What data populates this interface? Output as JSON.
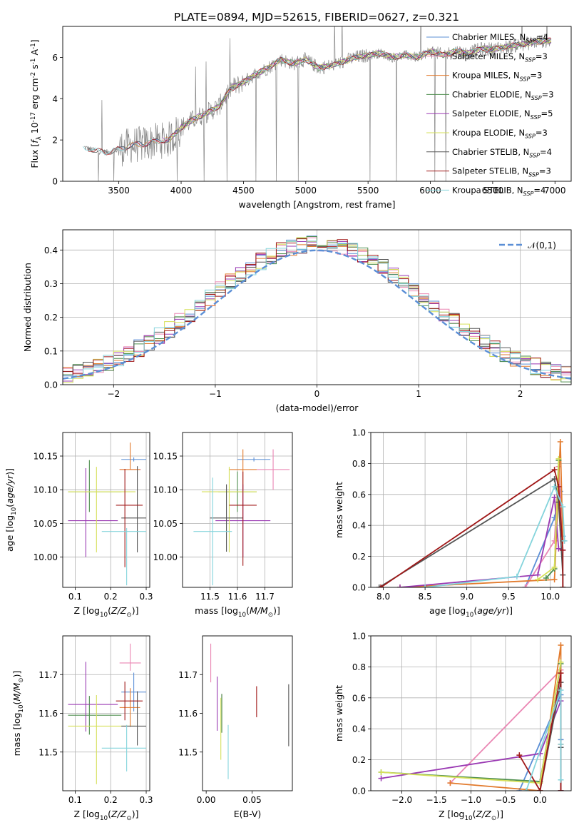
{
  "title": "PLATE=0894, MJD=52615, FIBERID=0627, z=0.321",
  "colors": {
    "chabrier_miles": "#5b8fd6",
    "salpeter_miles": "#ea86b3",
    "kroupa_miles": "#e27a2c",
    "chabrier_elodie": "#4e8e4e",
    "salpeter_elodie": "#9a39b3",
    "kroupa_elodie": "#d6e05a",
    "chabrier_stelib": "#555555",
    "salpeter_stelib": "#a01818",
    "kroupa_stelib": "#84d4dc",
    "data_gray": "#888888",
    "normal_curve": "#5b8fd6"
  },
  "chart_data": [
    {
      "id": "spectrum",
      "type": "line",
      "xlabel": "wavelength [Angstrom, rest frame]",
      "ylabel": "Flux [$f_\\lambda 10^{-17}$ erg cm$^{-2}$ s$^{-1}$ A$^{-1}$]",
      "xlim": [
        3050,
        7130
      ],
      "ylim": [
        0,
        7.5
      ],
      "xticks": [
        3500,
        4000,
        4500,
        5000,
        5500,
        6000,
        6500,
        7000
      ],
      "yticks": [
        0,
        2,
        4,
        6
      ],
      "legend_position": "top-right",
      "continuum": {
        "x": [
          3220,
          3300,
          3400,
          3500,
          3600,
          3700,
          3800,
          3900,
          4000,
          4100,
          4200,
          4300,
          4400,
          4500,
          4600,
          4700,
          4800,
          4900,
          5000,
          5100,
          5200,
          5300,
          5400,
          5500,
          5600,
          5700,
          5800,
          5900,
          6000,
          6100,
          6200,
          6300,
          6400,
          6500,
          6600,
          6700,
          6800,
          6900,
          6970
        ],
        "y": [
          1.65,
          1.5,
          1.4,
          1.55,
          1.75,
          1.8,
          1.95,
          2.0,
          2.6,
          3.0,
          3.3,
          3.6,
          4.5,
          4.8,
          5.2,
          5.5,
          5.9,
          5.7,
          5.9,
          5.5,
          5.6,
          5.8,
          6.0,
          6.1,
          6.2,
          6.0,
          6.1,
          6.0,
          6.3,
          6.1,
          6.3,
          6.2,
          6.4,
          6.4,
          6.5,
          6.6,
          6.7,
          6.8,
          6.8
        ]
      },
      "series": [
        {
          "name": "Chabrier MILES, N$_{SSP}$=4",
          "color_key": "chabrier_miles"
        },
        {
          "name": "Salpeter MILES, N$_{SSP}$=3",
          "color_key": "salpeter_miles"
        },
        {
          "name": "Kroupa MILES, N$_{SSP}$=3",
          "color_key": "kroupa_miles"
        },
        {
          "name": "Chabrier ELODIE, N$_{SSP}$=3",
          "color_key": "chabrier_elodie"
        },
        {
          "name": "Salpeter ELODIE, N$_{SSP}$=5",
          "color_key": "salpeter_elodie"
        },
        {
          "name": "Kroupa ELODIE, N$_{SSP}$=3",
          "color_key": "kroupa_elodie"
        },
        {
          "name": "Chabrier STELIB, N$_{SSP}$=4",
          "color_key": "chabrier_stelib"
        },
        {
          "name": "Salpeter STELIB, N$_{SSP}$=3",
          "color_key": "salpeter_stelib"
        },
        {
          "name": "Kroupa STELIB, N$_{SSP}$=4",
          "color_key": "kroupa_stelib"
        }
      ]
    },
    {
      "id": "residuals",
      "type": "line",
      "xlabel": "(data-model)/error",
      "ylabel": "Normed distribution",
      "xlim": [
        -2.5,
        2.5
      ],
      "ylim": [
        0,
        0.46
      ],
      "xticks": [
        -2,
        -1,
        0,
        1,
        2
      ],
      "yticks": [
        0.0,
        0.1,
        0.2,
        0.3,
        0.4
      ],
      "grid": true,
      "legend_position": "top-right",
      "normal_label": "$\\mathcal{N}(0,1)$"
    },
    {
      "id": "age_vs_Z",
      "type": "scatter",
      "xlabel": "Z [log$_{10}$($Z/Z_\\odot$)]",
      "ylabel": "age  [log$_{10}$($age/yr$)]",
      "xlim": [
        0.065,
        0.31
      ],
      "ylim": [
        9.955,
        10.185
      ],
      "xticks": [
        0.1,
        0.2,
        0.3
      ],
      "yticks": [
        10.0,
        10.05,
        10.1,
        10.15
      ],
      "grid": true,
      "points": [
        {
          "series": "chabrier_miles",
          "x": 0.265,
          "xerr": [
            0.035,
            0.035
          ],
          "y": 10.145,
          "yerr": [
            0.003,
            0.003
          ]
        },
        {
          "series": "salpeter_miles",
          "x": 0.255,
          "xerr": [
            0.03,
            0.03
          ],
          "y": 10.13,
          "yerr": [
            0.0,
            0.0
          ]
        },
        {
          "series": "kroupa_miles",
          "x": 0.255,
          "xerr": [
            0.03,
            0.028
          ],
          "y": 10.13,
          "yerr": [
            0.0,
            0.04
          ]
        },
        {
          "series": "chabrier_elodie",
          "x": 0.14,
          "xerr": [
            0.06,
            0.09
          ],
          "y": 10.097,
          "yerr": [
            0.03,
            0.047
          ]
        },
        {
          "series": "salpeter_elodie",
          "x": 0.13,
          "xerr": [
            0.05,
            0.09
          ],
          "y": 10.054,
          "yerr": [
            0.054,
            0.078
          ]
        },
        {
          "series": "kroupa_elodie",
          "x": 0.16,
          "xerr": [
            0.08,
            0.11
          ],
          "y": 10.097,
          "yerr": [
            0.09,
            0.037
          ]
        },
        {
          "series": "chabrier_stelib",
          "x": 0.275,
          "xerr": [
            0.045,
            0.025
          ],
          "y": 10.058,
          "yerr": [
            0.051,
            0.077
          ]
        },
        {
          "series": "salpeter_stelib",
          "x": 0.24,
          "xerr": [
            0.025,
            0.05
          ],
          "y": 10.077,
          "yerr": [
            0.092,
            0.054
          ]
        },
        {
          "series": "kroupa_stelib",
          "x": 0.245,
          "xerr": [
            0.07,
            0.055
          ],
          "y": 10.038,
          "yerr": [
            0.08,
            0.005
          ]
        }
      ]
    },
    {
      "id": "age_vs_mass",
      "type": "scatter",
      "xlabel": "mass [log$_{10}$($M/M_\\odot$)]",
      "ylabel": "",
      "xlim": [
        11.4,
        11.8
      ],
      "ylim": [
        9.955,
        10.185
      ],
      "xticks": [
        11.5,
        11.6,
        11.7
      ],
      "yticks": [
        10.0,
        10.05,
        10.1,
        10.15
      ],
      "grid": true,
      "points": [
        {
          "series": "chabrier_miles",
          "x": 11.66,
          "xerr": [
            0.06,
            0.06
          ],
          "y": 10.145,
          "yerr": [
            0.003,
            0.003
          ]
        },
        {
          "series": "salpeter_miles",
          "x": 11.73,
          "xerr": [
            0.06,
            0.06
          ],
          "y": 10.13,
          "yerr": [
            0.03,
            0.03
          ]
        },
        {
          "series": "kroupa_miles",
          "x": 11.62,
          "xerr": [
            0.05,
            0.05
          ],
          "y": 10.13,
          "yerr": [
            0.03,
            0.03
          ]
        },
        {
          "series": "chabrier_elodie",
          "x": 11.6,
          "xerr": [
            0.07,
            0.07
          ],
          "y": 10.097,
          "yerr": [
            0.03,
            0.03
          ]
        },
        {
          "series": "salpeter_elodie",
          "x": 11.62,
          "xerr": [
            0.1,
            0.1
          ],
          "y": 10.054,
          "yerr": [
            0.054,
            0.054
          ]
        },
        {
          "series": "kroupa_elodie",
          "x": 11.57,
          "xerr": [
            0.1,
            0.1
          ],
          "y": 10.097,
          "yerr": [
            0.09,
            0.037
          ]
        },
        {
          "series": "chabrier_stelib",
          "x": 11.56,
          "xerr": [
            0.06,
            0.06
          ],
          "y": 10.058,
          "yerr": [
            0.05,
            0.05
          ]
        },
        {
          "series": "salpeter_stelib",
          "x": 11.62,
          "xerr": [
            0.05,
            0.05
          ],
          "y": 10.077,
          "yerr": [
            0.09,
            0.05
          ]
        },
        {
          "series": "kroupa_stelib",
          "x": 11.51,
          "xerr": [
            0.07,
            0.07
          ],
          "y": 10.038,
          "yerr": [
            0.08,
            0.08
          ]
        }
      ]
    },
    {
      "id": "weight_vs_age",
      "type": "line",
      "xlabel": "age  [log$_{10}$($age/yr$)]",
      "ylabel": "mass weight",
      "xlim": [
        7.85,
        10.25
      ],
      "ylim": [
        0,
        1.0
      ],
      "xticks": [
        8.0,
        8.5,
        9.0,
        9.5,
        10.0
      ],
      "yticks": [
        0.0,
        0.2,
        0.4,
        0.6,
        0.8,
        1.0
      ],
      "grid": true,
      "series": [
        {
          "color_key": "chabrier_miles",
          "x": [
            9.7,
            10.05,
            10.12,
            10.15
          ],
          "y": [
            0.0,
            0.45,
            0.62,
            0.33
          ]
        },
        {
          "color_key": "salpeter_miles",
          "x": [
            9.7,
            10.05,
            10.1,
            10.15
          ],
          "y": [
            0.0,
            0.3,
            0.78,
            0.3
          ]
        },
        {
          "color_key": "kroupa_miles",
          "x": [
            8.2,
            10.05,
            10.12,
            10.15
          ],
          "y": [
            0.0,
            0.05,
            0.94,
            0.3
          ]
        },
        {
          "color_key": "chabrier_elodie",
          "x": [
            9.95,
            10.05,
            10.1
          ],
          "y": [
            0.06,
            0.12,
            0.82
          ]
        },
        {
          "color_key": "salpeter_elodie",
          "x": [
            8.2,
            9.85,
            10.05,
            10.1,
            10.15
          ],
          "y": [
            0.0,
            0.08,
            0.58,
            0.25,
            0.24
          ]
        },
        {
          "color_key": "kroupa_elodie",
          "x": [
            9.85,
            10.05,
            10.1
          ],
          "y": [
            0.05,
            0.13,
            0.83
          ]
        },
        {
          "color_key": "chabrier_stelib",
          "x": [
            7.95,
            10.05,
            10.1,
            10.15,
            10.15
          ],
          "y": [
            0.0,
            0.7,
            0.55,
            0.08,
            0.0
          ]
        },
        {
          "color_key": "salpeter_stelib",
          "x": [
            7.97,
            10.05,
            10.1,
            10.15,
            10.15
          ],
          "y": [
            0.0,
            0.76,
            0.65,
            0.24,
            0.0
          ]
        },
        {
          "color_key": "kroupa_stelib",
          "x": [
            8.5,
            9.6,
            10.05,
            10.15,
            10.17
          ],
          "y": [
            0.0,
            0.07,
            0.65,
            0.52,
            0.3
          ]
        }
      ]
    },
    {
      "id": "mass_vs_Z",
      "type": "scatter",
      "xlabel": "Z [log$_{10}$($Z/Z_\\odot$)]",
      "ylabel": "mass [log$_{10}$($M/M_\\odot$)]",
      "xlim": [
        0.065,
        0.31
      ],
      "ylim": [
        11.4,
        11.8
      ],
      "xticks": [
        0.1,
        0.2,
        0.3
      ],
      "yticks": [
        11.5,
        11.6,
        11.7
      ],
      "grid": true,
      "points": [
        {
          "series": "chabrier_miles",
          "x": 0.265,
          "xerr": [
            0.035,
            0.035
          ],
          "y": 11.655,
          "yerr": [
            0.05,
            0.05
          ]
        },
        {
          "series": "salpeter_miles",
          "x": 0.255,
          "xerr": [
            0.03,
            0.03
          ],
          "y": 11.73,
          "yerr": [
            0.02,
            0.05
          ]
        },
        {
          "series": "kroupa_miles",
          "x": 0.255,
          "xerr": [
            0.03,
            0.028
          ],
          "y": 11.615,
          "yerr": [
            0.05,
            0.05
          ]
        },
        {
          "series": "chabrier_elodie",
          "x": 0.14,
          "xerr": [
            0.06,
            0.09
          ],
          "y": 11.595,
          "yerr": [
            0.05,
            0.05
          ]
        },
        {
          "series": "salpeter_elodie",
          "x": 0.13,
          "xerr": [
            0.05,
            0.09
          ],
          "y": 11.623,
          "yerr": [
            0.07,
            0.11
          ]
        },
        {
          "series": "kroupa_elodie",
          "x": 0.16,
          "xerr": [
            0.08,
            0.11
          ],
          "y": 11.567,
          "yerr": [
            0.15,
            0.08
          ]
        },
        {
          "series": "chabrier_stelib",
          "x": 0.275,
          "xerr": [
            0.045,
            0.025
          ],
          "y": 11.567,
          "yerr": [
            0.05,
            0.09
          ]
        },
        {
          "series": "salpeter_stelib",
          "x": 0.24,
          "xerr": [
            0.025,
            0.05
          ],
          "y": 11.632,
          "yerr": [
            0.05,
            0.05
          ]
        },
        {
          "series": "kroupa_stelib",
          "x": 0.245,
          "xerr": [
            0.07,
            0.055
          ],
          "y": 11.51,
          "yerr": [
            0.06,
            0.06
          ]
        }
      ]
    },
    {
      "id": "mass_vs_ebv",
      "type": "scatter",
      "xlabel": "E(B-V)",
      "ylabel": "",
      "xlim": [
        -0.004,
        0.094
      ],
      "ylim": [
        11.4,
        11.8
      ],
      "xticks": [
        0.0,
        0.05
      ],
      "yticks": [
        11.5,
        11.6,
        11.7
      ],
      "grid": false,
      "points": [
        {
          "series": "chabrier_miles",
          "x": 0.017,
          "y": 11.6,
          "yerr": [
            0.05,
            0.05
          ]
        },
        {
          "series": "salpeter_miles",
          "x": 0.005,
          "y": 11.73,
          "yerr": [
            0.05,
            0.05
          ]
        },
        {
          "series": "kroupa_miles",
          "x": 0.017,
          "y": 11.6,
          "yerr": [
            0.05,
            0.05
          ]
        },
        {
          "series": "chabrier_elodie",
          "x": 0.017,
          "y": 11.6,
          "yerr": [
            0.05,
            0.05
          ]
        },
        {
          "series": "salpeter_elodie",
          "x": 0.012,
          "y": 11.625,
          "yerr": [
            0.07,
            0.07
          ]
        },
        {
          "series": "kroupa_elodie",
          "x": 0.016,
          "y": 11.56,
          "yerr": [
            0.08,
            0.08
          ]
        },
        {
          "series": "chabrier_stelib",
          "x": 0.09,
          "y": 11.595,
          "yerr": [
            0.08,
            0.08
          ]
        },
        {
          "series": "salpeter_stelib",
          "x": 0.055,
          "y": 11.63,
          "yerr": [
            0.04,
            0.04
          ]
        },
        {
          "series": "kroupa_stelib",
          "x": 0.024,
          "y": 11.5,
          "yerr": [
            0.07,
            0.07
          ]
        }
      ]
    },
    {
      "id": "weight_vs_Z",
      "type": "line",
      "xlabel": "Z [log$_{10}$($Z/Z_\\odot$)]",
      "ylabel": "mass weight",
      "xlim": [
        -2.45,
        0.45
      ],
      "ylim": [
        0,
        1.0
      ],
      "xticks": [
        -2.0,
        -1.5,
        -1.0,
        -0.5,
        0.0
      ],
      "yticks": [
        0.0,
        0.2,
        0.4,
        0.6,
        0.8,
        1.0
      ],
      "grid": true,
      "series": [
        {
          "color_key": "chabrier_miles",
          "x": [
            -0.3,
            0.3,
            0.3,
            0.3
          ],
          "y": [
            0.0,
            0.62,
            0.33,
            0.0
          ]
        },
        {
          "color_key": "salpeter_miles",
          "x": [
            -1.3,
            0.3,
            0.3
          ],
          "y": [
            0.05,
            0.78,
            0.3
          ]
        },
        {
          "color_key": "kroupa_miles",
          "x": [
            -1.3,
            0.0,
            0.3,
            0.3
          ],
          "y": [
            0.05,
            0.0,
            0.94,
            0.3
          ]
        },
        {
          "color_key": "chabrier_elodie",
          "x": [
            -2.3,
            0.0,
            0.3
          ],
          "y": [
            0.12,
            0.06,
            0.82
          ]
        },
        {
          "color_key": "salpeter_elodie",
          "x": [
            -2.3,
            0.0,
            0.3,
            0.3
          ],
          "y": [
            0.08,
            0.24,
            0.58,
            0.0
          ]
        },
        {
          "color_key": "kroupa_elodie",
          "x": [
            -2.3,
            0.0,
            0.3
          ],
          "y": [
            0.12,
            0.05,
            0.83
          ]
        },
        {
          "color_key": "chabrier_stelib",
          "x": [
            0.0,
            0.3,
            0.3,
            0.3
          ],
          "y": [
            0.0,
            0.7,
            0.28,
            0.0
          ]
        },
        {
          "color_key": "salpeter_stelib",
          "x": [
            -0.3,
            0.0,
            0.3,
            0.3
          ],
          "y": [
            0.23,
            0.0,
            0.76,
            0.0
          ]
        },
        {
          "color_key": "kroupa_stelib",
          "x": [
            -0.2,
            0.3,
            0.3,
            0.3
          ],
          "y": [
            0.0,
            0.65,
            0.3,
            0.07
          ]
        }
      ]
    }
  ]
}
